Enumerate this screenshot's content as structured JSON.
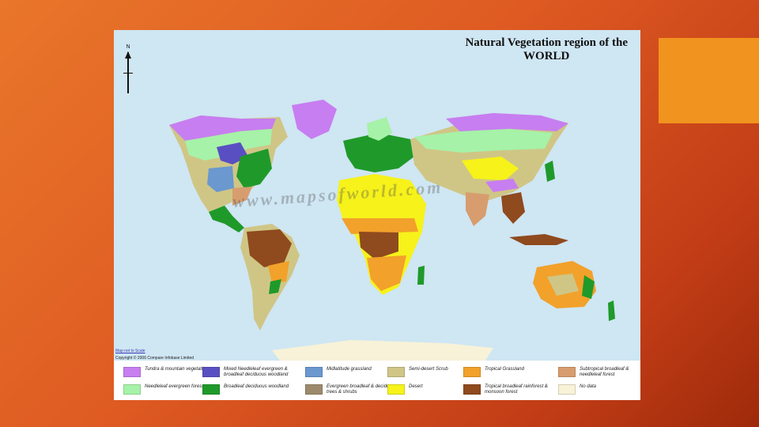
{
  "map": {
    "title_line1": "Natural Vegetation region of the",
    "title_line2": "WORLD",
    "north_label": "N",
    "watermark": "www.mapsofworld.com",
    "scale_note": "Map not to Scale",
    "copyright": "Copyright © 2006 Compare Infobase Limited"
  },
  "colors": {
    "background_orange": "#e9762a",
    "background_red": "#9e2a0b",
    "accent_box": "#f0941f",
    "ocean": "#cfe6f3"
  },
  "legend": [
    {
      "label": "Tundra & mountain vegetation",
      "color": "#c77ef0"
    },
    {
      "label": "Needleleaf evergreen forest",
      "color": "#a6f2a8"
    },
    {
      "label": "Mixed Needleleaf evergreen & broadleaf deciduous woodland",
      "color": "#5a4fc2"
    },
    {
      "label": "Broadleaf deciduous woodland",
      "color": "#1f9a2a"
    },
    {
      "label": "Midlatitude grassland",
      "color": "#6a98cf"
    },
    {
      "label": "Evergreen broadleaf & deciduous trees & shrubs",
      "color": "#9c8a6a"
    },
    {
      "label": "Semi-desert Scrub",
      "color": "#cfc686"
    },
    {
      "label": "Desert",
      "color": "#f6f21a"
    },
    {
      "label": "Tropical Grassland",
      "color": "#f2a12a"
    },
    {
      "label": "Tropical broadleaf rainforest & monsoon forest",
      "color": "#8f4a1e"
    },
    {
      "label": "Subtropical broadleaf & needleleaf forest",
      "color": "#d79d6e"
    },
    {
      "label": "No data",
      "color": "#f7f2d8"
    }
  ]
}
